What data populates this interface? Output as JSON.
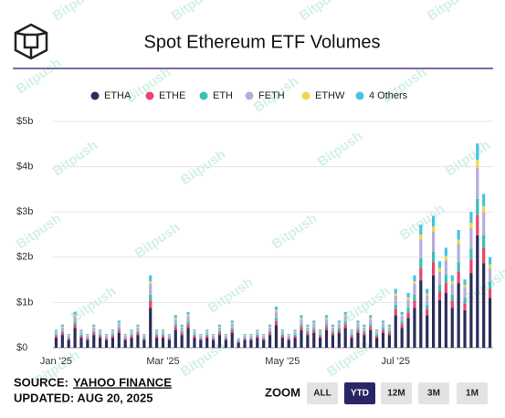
{
  "chart_data": {
    "type": "stacked_bar",
    "title": "Spot Ethereum ETF Volumes",
    "categories": [
      "Jan '25",
      null,
      null,
      null,
      null,
      null,
      null,
      null,
      null,
      null,
      null,
      null,
      null,
      null,
      null,
      null,
      null,
      "Mar '25",
      null,
      null,
      null,
      null,
      null,
      null,
      null,
      null,
      null,
      null,
      null,
      null,
      null,
      null,
      null,
      null,
      null,
      null,
      "May '25",
      null,
      null,
      null,
      null,
      null,
      null,
      null,
      null,
      null,
      null,
      null,
      null,
      null,
      null,
      null,
      null,
      null,
      "Jul '25",
      null,
      null,
      null,
      null,
      null,
      null,
      null,
      null,
      null,
      null,
      null,
      null,
      null,
      null,
      null
    ],
    "series": [
      {
        "name": "ETHA",
        "color": "#2b2d5c",
        "values": [
          0.22,
          0.28,
          0.17,
          0.44,
          0.22,
          0.17,
          0.28,
          0.22,
          0.17,
          0.22,
          0.33,
          0.17,
          0.22,
          0.28,
          0.17,
          0.88,
          0.22,
          0.22,
          0.17,
          0.39,
          0.28,
          0.44,
          0.22,
          0.17,
          0.22,
          0.17,
          0.28,
          0.17,
          0.33,
          0.11,
          0.17,
          0.17,
          0.22,
          0.17,
          0.28,
          0.5,
          0.22,
          0.17,
          0.22,
          0.39,
          0.28,
          0.33,
          0.22,
          0.39,
          0.28,
          0.33,
          0.44,
          0.22,
          0.33,
          0.28,
          0.39,
          0.22,
          0.33,
          0.28,
          0.72,
          0.44,
          0.66,
          0.88,
          1.49,
          0.72,
          1.6,
          1.05,
          1.21,
          0.88,
          1.43,
          0.83,
          1.65,
          2.48,
          1.87,
          1.1
        ]
      },
      {
        "name": "ETHE",
        "color": "#e8456b",
        "values": [
          0.04,
          0.05,
          0.03,
          0.08,
          0.04,
          0.03,
          0.05,
          0.04,
          0.03,
          0.04,
          0.06,
          0.03,
          0.04,
          0.05,
          0.03,
          0.16,
          0.04,
          0.04,
          0.03,
          0.07,
          0.05,
          0.08,
          0.04,
          0.03,
          0.04,
          0.03,
          0.05,
          0.03,
          0.06,
          0.02,
          0.03,
          0.03,
          0.04,
          0.03,
          0.05,
          0.09,
          0.04,
          0.03,
          0.04,
          0.07,
          0.05,
          0.06,
          0.04,
          0.07,
          0.05,
          0.06,
          0.08,
          0.04,
          0.06,
          0.05,
          0.07,
          0.04,
          0.06,
          0.05,
          0.13,
          0.08,
          0.12,
          0.16,
          0.27,
          0.13,
          0.29,
          0.19,
          0.22,
          0.16,
          0.26,
          0.15,
          0.3,
          0.45,
          0.34,
          0.2
        ]
      },
      {
        "name": "ETH",
        "color": "#3dbfb0",
        "values": [
          0.03,
          0.04,
          0.02,
          0.06,
          0.03,
          0.02,
          0.04,
          0.03,
          0.02,
          0.03,
          0.05,
          0.02,
          0.03,
          0.04,
          0.02,
          0.13,
          0.03,
          0.03,
          0.02,
          0.06,
          0.04,
          0.06,
          0.03,
          0.02,
          0.03,
          0.02,
          0.04,
          0.02,
          0.05,
          0.02,
          0.02,
          0.02,
          0.03,
          0.02,
          0.04,
          0.07,
          0.03,
          0.02,
          0.03,
          0.06,
          0.04,
          0.05,
          0.03,
          0.06,
          0.04,
          0.05,
          0.06,
          0.03,
          0.05,
          0.04,
          0.06,
          0.03,
          0.05,
          0.04,
          0.1,
          0.06,
          0.1,
          0.13,
          0.22,
          0.1,
          0.23,
          0.15,
          0.18,
          0.13,
          0.21,
          0.12,
          0.24,
          0.36,
          0.27,
          0.16
        ]
      },
      {
        "name": "FETH",
        "color": "#b3aee0",
        "values": [
          0.06,
          0.08,
          0.05,
          0.12,
          0.06,
          0.05,
          0.08,
          0.06,
          0.05,
          0.06,
          0.09,
          0.05,
          0.06,
          0.08,
          0.05,
          0.24,
          0.06,
          0.06,
          0.05,
          0.11,
          0.08,
          0.12,
          0.06,
          0.05,
          0.06,
          0.05,
          0.08,
          0.05,
          0.09,
          0.03,
          0.05,
          0.05,
          0.06,
          0.05,
          0.08,
          0.14,
          0.06,
          0.05,
          0.06,
          0.11,
          0.08,
          0.09,
          0.06,
          0.11,
          0.08,
          0.09,
          0.12,
          0.06,
          0.09,
          0.08,
          0.11,
          0.06,
          0.09,
          0.08,
          0.2,
          0.12,
          0.18,
          0.24,
          0.41,
          0.2,
          0.44,
          0.29,
          0.33,
          0.24,
          0.39,
          0.23,
          0.45,
          0.68,
          0.51,
          0.3
        ]
      },
      {
        "name": "ETHW",
        "color": "#f2d54e",
        "values": [
          0.02,
          0.02,
          0.01,
          0.03,
          0.02,
          0.01,
          0.02,
          0.02,
          0.01,
          0.02,
          0.02,
          0.01,
          0.02,
          0.02,
          0.01,
          0.06,
          0.02,
          0.02,
          0.01,
          0.03,
          0.02,
          0.03,
          0.02,
          0.01,
          0.02,
          0.01,
          0.02,
          0.01,
          0.02,
          0.01,
          0.01,
          0.01,
          0.02,
          0.01,
          0.02,
          0.04,
          0.02,
          0.01,
          0.02,
          0.03,
          0.02,
          0.02,
          0.02,
          0.03,
          0.02,
          0.02,
          0.03,
          0.02,
          0.02,
          0.02,
          0.03,
          0.02,
          0.02,
          0.02,
          0.05,
          0.03,
          0.05,
          0.06,
          0.11,
          0.05,
          0.12,
          0.08,
          0.09,
          0.06,
          0.1,
          0.06,
          0.12,
          0.18,
          0.14,
          0.08
        ]
      },
      {
        "name": "4 Others",
        "color": "#45c3e6",
        "values": [
          0.03,
          0.04,
          0.02,
          0.06,
          0.03,
          0.02,
          0.04,
          0.03,
          0.02,
          0.03,
          0.05,
          0.02,
          0.03,
          0.04,
          0.02,
          0.13,
          0.03,
          0.03,
          0.02,
          0.06,
          0.04,
          0.06,
          0.03,
          0.02,
          0.03,
          0.02,
          0.04,
          0.02,
          0.05,
          0.02,
          0.02,
          0.02,
          0.03,
          0.02,
          0.04,
          0.07,
          0.03,
          0.02,
          0.03,
          0.06,
          0.04,
          0.05,
          0.03,
          0.06,
          0.04,
          0.05,
          0.06,
          0.03,
          0.05,
          0.04,
          0.06,
          0.03,
          0.05,
          0.04,
          0.1,
          0.06,
          0.1,
          0.13,
          0.22,
          0.1,
          0.23,
          0.15,
          0.18,
          0.13,
          0.21,
          0.12,
          0.24,
          0.36,
          0.27,
          0.16
        ]
      }
    ],
    "ylim": [
      0,
      5
    ],
    "yticks": [
      {
        "value": 0,
        "label": "$0"
      },
      {
        "value": 1,
        "label": "$1b"
      },
      {
        "value": 2,
        "label": "$2b"
      },
      {
        "value": 3,
        "label": "$3b"
      },
      {
        "value": 4,
        "label": "$4b"
      },
      {
        "value": 5,
        "label": "$5b"
      }
    ],
    "grid": true,
    "legend": "top",
    "source_label": "SOURCE:",
    "source_name": "YAHOO FINANCE",
    "updated": "UPDATED: AUG 20, 2025",
    "zoom_label": "ZOOM",
    "zoom_options": [
      "ALL",
      "YTD",
      "12M",
      "3M",
      "1M"
    ],
    "zoom_active": "YTD",
    "watermark": "Bitpush"
  }
}
